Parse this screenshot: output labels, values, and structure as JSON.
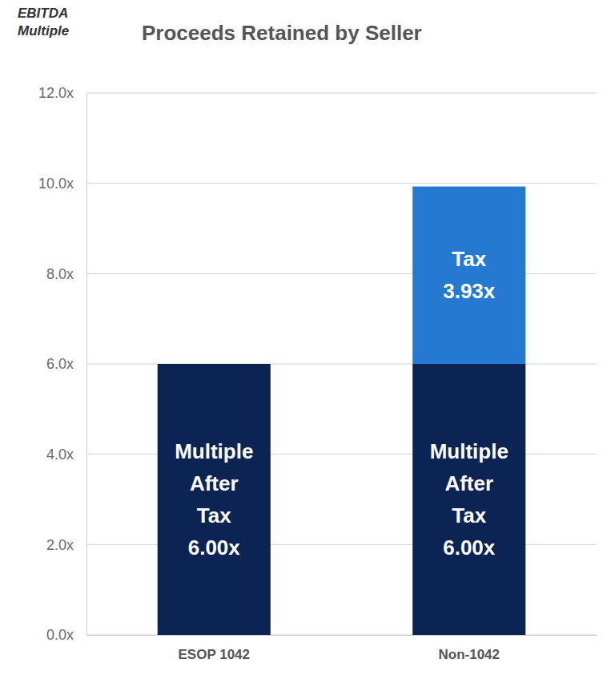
{
  "chart_data": {
    "type": "bar",
    "title": "Proceeds Retained by Seller",
    "y_label": "EBITDA Multiple",
    "categories": [
      "ESOP 1042",
      "Non-1042"
    ],
    "series": [
      {
        "name": "Multiple After Tax",
        "color": "#0b2454",
        "values": [
          6.0,
          6.0
        ],
        "value_labels": [
          "6.00x",
          "6.00x"
        ]
      },
      {
        "name": "Tax",
        "color": "#2679d0",
        "values": [
          null,
          3.93
        ],
        "value_labels": [
          null,
          "3.93x"
        ]
      }
    ],
    "stacked": true,
    "data_labels": true,
    "grid": true,
    "ylim": [
      0,
      12
    ],
    "yticks": [
      {
        "value": 0,
        "label": "0.0x"
      },
      {
        "value": 2,
        "label": "2.0x"
      },
      {
        "value": 4,
        "label": "4.0x"
      },
      {
        "value": 6,
        "label": "6.0x"
      },
      {
        "value": 8,
        "label": "8.0x"
      },
      {
        "value": 10,
        "label": "10.0x"
      },
      {
        "value": 12,
        "label": "12.0x"
      }
    ]
  }
}
